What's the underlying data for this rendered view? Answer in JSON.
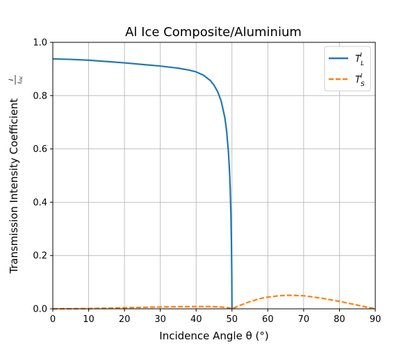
{
  "chart_data": {
    "type": "line",
    "title": "Al Ice Composite/Aluminium",
    "xlabel": "Incidence Angle θ (°)",
    "ylabel": "Transmission Intensity Coefficient",
    "ylabel_fraction": {
      "numerator": "I",
      "denominator": "I_inc"
    },
    "xlim": [
      0,
      90
    ],
    "ylim": [
      0,
      1.0
    ],
    "x_ticks": [
      "0",
      "10",
      "20",
      "30",
      "40",
      "50",
      "60",
      "70",
      "80",
      "90"
    ],
    "y_ticks": [
      "0.0",
      "0.2",
      "0.4",
      "0.6",
      "0.8",
      "1.0"
    ],
    "grid": true,
    "legend_position": "top-right",
    "series": [
      {
        "name": "T_L^I",
        "name_parts": {
          "base": "T",
          "sub": "L",
          "sup": "I"
        },
        "color": "#1f77b4",
        "style": "solid",
        "x": [
          0,
          5,
          10,
          15,
          20,
          25,
          30,
          35,
          38,
          40,
          42,
          44,
          45,
          46,
          47,
          48,
          48.5,
          49,
          49.3,
          49.5,
          49.7,
          49.85,
          49.95,
          50.0
        ],
        "y": [
          0.938,
          0.936,
          0.933,
          0.928,
          0.923,
          0.917,
          0.911,
          0.903,
          0.896,
          0.889,
          0.877,
          0.856,
          0.839,
          0.815,
          0.779,
          0.718,
          0.668,
          0.591,
          0.521,
          0.454,
          0.355,
          0.246,
          0.128,
          0.0
        ]
      },
      {
        "name": "T_S^I",
        "name_parts": {
          "base": "T",
          "sub": "S",
          "sup": "I"
        },
        "color": "#ff7f0e",
        "style": "dashed",
        "x": [
          0,
          5,
          10,
          15,
          20,
          25,
          30,
          35,
          40,
          44,
          47,
          49,
          50,
          51,
          53,
          55,
          58,
          60,
          63,
          66,
          70,
          75,
          80,
          85,
          88,
          90
        ],
        "y": [
          0.0,
          0.0005,
          0.001,
          0.0025,
          0.004,
          0.0055,
          0.007,
          0.008,
          0.0085,
          0.0085,
          0.007,
          0.004,
          0.0005,
          0.006,
          0.017,
          0.027,
          0.039,
          0.044,
          0.049,
          0.051,
          0.049,
          0.04,
          0.028,
          0.014,
          0.005,
          0.0
        ]
      }
    ]
  }
}
